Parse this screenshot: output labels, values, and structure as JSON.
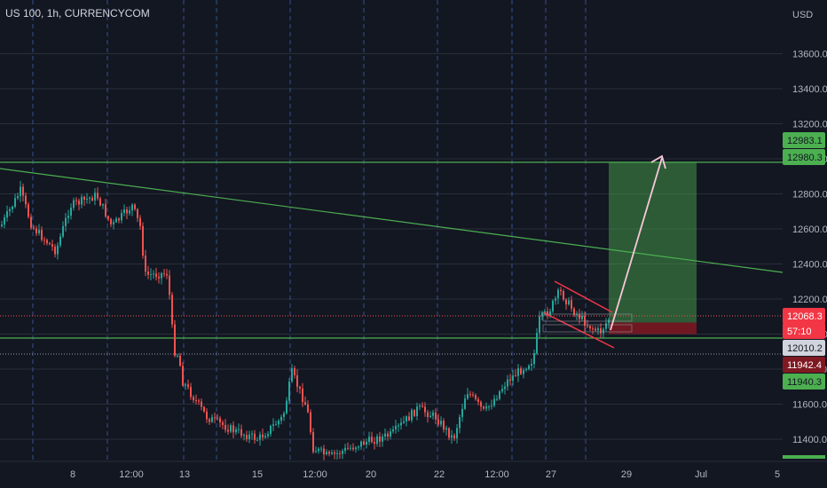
{
  "header": {
    "symbol_title": "US 100, 1h, CURRENCYCOM"
  },
  "chart_data": {
    "type": "candlestick",
    "currency_label": "USD",
    "y_ticks": [
      "13600.0",
      "13400.0",
      "13200.0",
      "13000.0",
      "12800.0",
      "12600.0",
      "12400.0",
      "12200.0",
      "12000.0",
      "11800.0",
      "11600.0",
      "11400.0"
    ],
    "x_ticks": [
      "8",
      "12:00",
      "13",
      "15",
      "12:00",
      "20",
      "22",
      "12:00",
      "27",
      "29",
      "Jul",
      "5"
    ],
    "price_labels": [
      {
        "text": "12983.1",
        "bg": "#4caf50",
        "fg": "#131722"
      },
      {
        "text": "12980.3",
        "bg": "#4caf50",
        "fg": "#131722"
      },
      {
        "text": "12068.3",
        "bg": "#f23645",
        "fg": "#ffffff"
      },
      {
        "text": "57:10",
        "bg": "#f23645",
        "fg": "#ffffff"
      },
      {
        "text": "12010.2",
        "bg": "#d1d4dc",
        "fg": "#131722"
      },
      {
        "text": "11942.4",
        "bg": "#801922",
        "fg": "#ffffff"
      },
      {
        "text": "11940.3",
        "bg": "#4caf50",
        "fg": "#131722"
      }
    ],
    "levels": {
      "target": 12980.3,
      "current": 12068.3,
      "entry": 12010.2,
      "stop": 11942.4,
      "support": 11940.3
    },
    "colors": {
      "background": "#131722",
      "bull": "#26a69a",
      "bear": "#ef5350",
      "grid": "#2a2e39",
      "session_line": "#3f62b4",
      "level_line": "#4caf50",
      "trend_line": "#4caf50",
      "profit_zone": "#4caf50",
      "loss_zone": "#801922",
      "arrow": "#f8c8d8",
      "channel": "#f23645"
    }
  }
}
